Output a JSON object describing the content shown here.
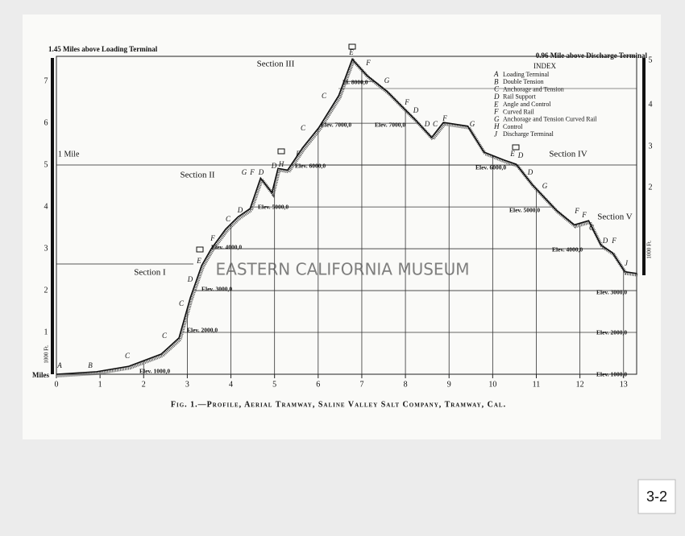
{
  "chart_data": {
    "type": "line",
    "top_left_label": "1.45 Miles above Loading Terminal",
    "top_right_label": "0.96 Mile above Discharge Terminal",
    "mile_label": "1 Mile",
    "origin_label": "Miles",
    "scale_label": "1000 Ft.",
    "caption": "Fig. 1.—Profile, Aerial Tramway, Saline Valley Salt Company, Tramway, Cal.",
    "watermark": "EASTERN CALIFORNIA MUSEUM",
    "page_number": "3-2",
    "sections": [
      "Section I",
      "Section II",
      "Section III",
      "Section IV",
      "Section V"
    ],
    "elevations": [
      "Elev. 1000,0",
      "Elev. 2000,0",
      "Elev. 3000,0",
      "Elev. 4000,0",
      "Elev. 5000,0",
      "Elev. 6000,0",
      "Elev. 7000,0",
      "El. 8000,0",
      "Elev. 7000,0",
      "Elev. 6000,0",
      "Elev. 5000,0",
      "Elev. 4000,0",
      "Elev. 3000,0",
      "Elev. 2000,0",
      "Elev. 1000,0"
    ],
    "point_letters": [
      "A",
      "B",
      "C",
      "C",
      "C",
      "D",
      "E",
      "F",
      "C",
      "D",
      "G",
      "F",
      "D",
      "D",
      "H",
      "F",
      "C",
      "C",
      "E",
      "F",
      "G",
      "F",
      "D",
      "D",
      "C",
      "F",
      "G",
      "E",
      "D",
      "D",
      "G",
      "F",
      "F",
      "C",
      "D",
      "F",
      "J"
    ],
    "index_title": "INDEX",
    "index": [
      {
        "key": "A",
        "text": "Loading Terminal"
      },
      {
        "key": "B",
        "text": "Double Tension"
      },
      {
        "key": "C",
        "text": "Anchorage and Tension"
      },
      {
        "key": "D",
        "text": "Rail Support"
      },
      {
        "key": "E",
        "text": "Angle and Control"
      },
      {
        "key": "F",
        "text": "Curved Rail"
      },
      {
        "key": "G",
        "text": "Anchorage and Tension Curved Rail"
      },
      {
        "key": "H",
        "text": "Control"
      },
      {
        "key": "J",
        "text": "Discharge Terminal"
      }
    ],
    "right_scale_ticks": [
      2,
      3,
      4,
      5
    ],
    "x": [
      0,
      0.92,
      1.66,
      2.4,
      2.81,
      3.07,
      3.33,
      3.55,
      3.88,
      4.16,
      4.44,
      4.68,
      4.94,
      5.08,
      5.3,
      5.64,
      6.01,
      6.47,
      6.78,
      7.12,
      7.58,
      7.95,
      8.23,
      8.6,
      8.87,
      9.43,
      9.8,
      10.26,
      10.54,
      10.9,
      11.46,
      11.87,
      12.2,
      12.48,
      12.75,
      13.03,
      13.3
    ],
    "values": [
      0,
      0.06,
      0.19,
      0.48,
      0.87,
      1.83,
      2.6,
      3.0,
      3.47,
      3.76,
      3.96,
      4.69,
      4.34,
      4.92,
      4.88,
      5.41,
      5.89,
      6.66,
      7.53,
      7.14,
      6.76,
      6.37,
      6.08,
      5.66,
      6.02,
      5.93,
      5.31,
      5.12,
      5.02,
      4.54,
      3.92,
      3.57,
      3.67,
      3.09,
      2.9,
      2.45,
      2.41
    ],
    "color": "#111111",
    "xlim": [
      0,
      13.3
    ],
    "ylim": [
      0,
      7.6
    ],
    "xticks": [
      0,
      1,
      2,
      3,
      4,
      5,
      6,
      7,
      8,
      9,
      10,
      11,
      12,
      13
    ],
    "yticks": [
      1,
      2,
      3,
      4,
      5,
      6,
      7
    ],
    "grid": true
  }
}
